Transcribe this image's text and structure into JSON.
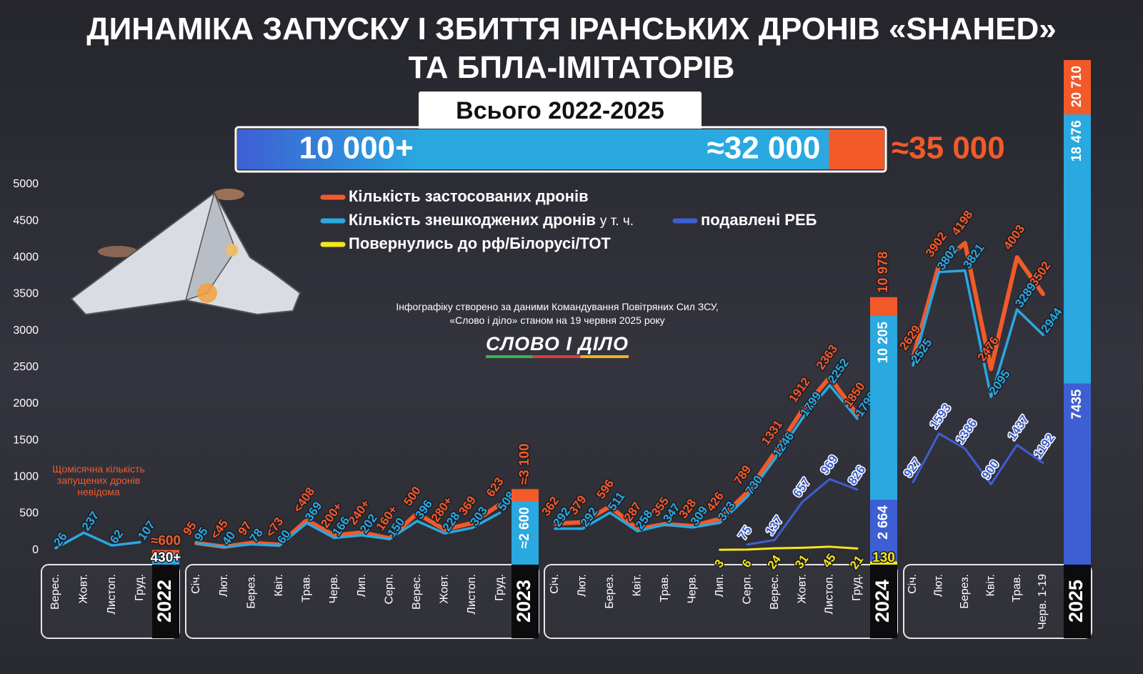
{
  "chart_data": {
    "type": "line",
    "title": [
      "ДИНАМІКА ЗАПУСКУ І ЗБИТТЯ ІРАНСЬКИХ ДРОНІВ «SHAHED»",
      "ТА БПЛА-ІМІТАТОРІВ"
    ],
    "overall": {
      "title": "Всього 2022-2025",
      "values": [
        10000,
        32000,
        35000
      ],
      "value_labels": [
        "10 000+",
        "≈32 000",
        "≈35 000"
      ],
      "xlim": [
        0,
        35000
      ]
    },
    "series": [
      {
        "name": "Кількість застосованих дронів",
        "color": "#f25a2a"
      },
      {
        "name": "Кількість знешкоджених дронів",
        "color": "#2aa8e0",
        "note": "у т. ч."
      },
      {
        "name": "подавлені РЕБ",
        "color": "#3d5fd3"
      },
      {
        "name": "Повернулись до рф/Білорусі/ТОТ",
        "color": "#f4e61c"
      }
    ],
    "ylim": [
      -200,
      5000
    ],
    "yticks": [
      0,
      500,
      1000,
      1500,
      2000,
      2500,
      3000,
      3500,
      4000,
      4500,
      5000
    ],
    "y2lim": [
      0,
      22000
    ],
    "grid": false,
    "note_2022": "Щомісячна кількість запущених дронів невідома",
    "source": "Інфографіку створено за даними Командування Повітряних Сил ЗСУ, «Слово і діло» станом на 19 червня 2025 року",
    "logo": "СЛОВО І ДІЛО",
    "panels": [
      {
        "year": "2022",
        "categories": [
          "Верес.",
          "Жовт.",
          "Листоп.",
          "Груд."
        ],
        "series": [
          {
            "values": [
              null,
              null,
              null,
              null
            ]
          },
          {
            "values": [
              26,
              237,
              62,
              107
            ]
          },
          {
            "values": [
              null,
              null,
              null,
              null
            ]
          },
          {
            "values": [
              null,
              null,
              null,
              null
            ]
          }
        ],
        "totals": [
          600,
          430,
          null,
          null
        ],
        "total_labels": [
          "≈600",
          "430+",
          null,
          null
        ]
      },
      {
        "year": "2023",
        "categories": [
          "Січ.",
          "Лют.",
          "Берез.",
          "Квіт.",
          "Трав.",
          "Черв.",
          "Лип.",
          "Серп.",
          "Верес.",
          "Жовт.",
          "Листоп.",
          "Груд."
        ],
        "series": [
          {
            "values": [
              95,
              45,
              97,
              73,
              408,
              200,
              240,
              160,
              500,
              280,
              369,
              623
            ],
            "value_labels": [
              "95",
              "<45",
              "97",
              "<73",
              "<408",
              "200+",
              "240+",
              "160+",
              "500",
              "280+",
              "369",
              "623"
            ]
          },
          {
            "values": [
              95,
              40,
              78,
              60,
              369,
              166,
              202,
              150,
              396,
              228,
              303,
              508
            ]
          },
          {
            "values": [
              null,
              null,
              null,
              null,
              null,
              null,
              null,
              null,
              null,
              null,
              null,
              null
            ]
          },
          {
            "values": [
              null,
              null,
              null,
              null,
              null,
              null,
              null,
              null,
              null,
              null,
              null,
              null
            ]
          }
        ],
        "totals": [
          3100,
          2600,
          null,
          null
        ],
        "total_labels": [
          "≈3 100",
          "≈2 600",
          null,
          null
        ]
      },
      {
        "year": "2024",
        "categories": [
          "Січ.",
          "Лют.",
          "Берез.",
          "Квіт.",
          "Трав.",
          "Черв.",
          "Лип.",
          "Серп.",
          "Верес.",
          "Жовт.",
          "Листоп.",
          "Груд."
        ],
        "series": [
          {
            "values": [
              362,
              379,
              596,
              287,
              355,
              328,
              426,
              789,
              1331,
              1912,
              2363,
              1850
            ]
          },
          {
            "values": [
              292,
              292,
              511,
              258,
              347,
              309,
              373,
              730,
              1246,
              1799,
              2252,
              1796
            ]
          },
          {
            "values": [
              null,
              null,
              null,
              null,
              null,
              null,
              null,
              75,
              137,
              657,
              969,
              826
            ]
          },
          {
            "values": [
              null,
              null,
              null,
              null,
              null,
              null,
              3,
              6,
              24,
              31,
              45,
              21
            ]
          }
        ],
        "totals": [
          10978,
          10205,
          2664,
          130
        ],
        "total_labels": [
          "10 978",
          "10 205",
          "2 664",
          "130"
        ]
      },
      {
        "year": "2025",
        "categories": [
          "Січ.",
          "Лют.",
          "Берез.",
          "Квіт.",
          "Трав.",
          "Черв. 1-19"
        ],
        "series": [
          {
            "values": [
              2629,
              3902,
              4198,
              2476,
              4003,
              3502
            ]
          },
          {
            "values": [
              2525,
              3802,
              3821,
              2095,
              3289,
              2944
            ]
          },
          {
            "values": [
              927,
              1593,
              1386,
              900,
              1437,
              1192
            ]
          },
          {
            "values": [
              null,
              null,
              null,
              null,
              null,
              null
            ]
          }
        ],
        "totals": [
          20710,
          18476,
          7435,
          null
        ],
        "total_labels": [
          "20 710",
          "18 476",
          "7435",
          null
        ]
      }
    ]
  }
}
